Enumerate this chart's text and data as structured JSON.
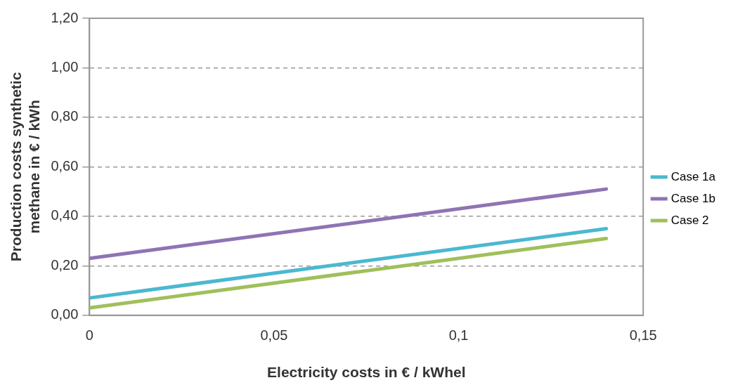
{
  "chart_data": {
    "type": "line",
    "xlabel": "Electricity costs in € / kWhel",
    "ylabel": "Production costs synthetic methane in € / kWh",
    "x": [
      0,
      0.14
    ],
    "series": [
      {
        "name": "Case 1a",
        "color": "#4bb8d0",
        "values": [
          0.07,
          0.35
        ]
      },
      {
        "name": "Case 1b",
        "color": "#8f74b4",
        "values": [
          0.23,
          0.51
        ]
      },
      {
        "name": "Case 2",
        "color": "#9fc05a",
        "values": [
          0.03,
          0.31
        ]
      }
    ],
    "xlim": [
      0,
      0.15
    ],
    "xticks": [
      {
        "value": 0,
        "label": "0"
      },
      {
        "value": 0.05,
        "label": "0,05"
      },
      {
        "value": 0.1,
        "label": "0,1"
      },
      {
        "value": 0.15,
        "label": "0,15"
      }
    ],
    "ylim": [
      0,
      1.2
    ],
    "yticks": [
      {
        "value": 0,
        "label": "0,00"
      },
      {
        "value": 0.2,
        "label": "0,20"
      },
      {
        "value": 0.4,
        "label": "0,40"
      },
      {
        "value": 0.6,
        "label": "0,60"
      },
      {
        "value": 0.8,
        "label": "0,80"
      },
      {
        "value": 1,
        "label": "1,00"
      },
      {
        "value": 1.2,
        "label": "1,20"
      }
    ],
    "grid": "y",
    "legend": "right",
    "marker": "none",
    "line_style": "solid"
  }
}
